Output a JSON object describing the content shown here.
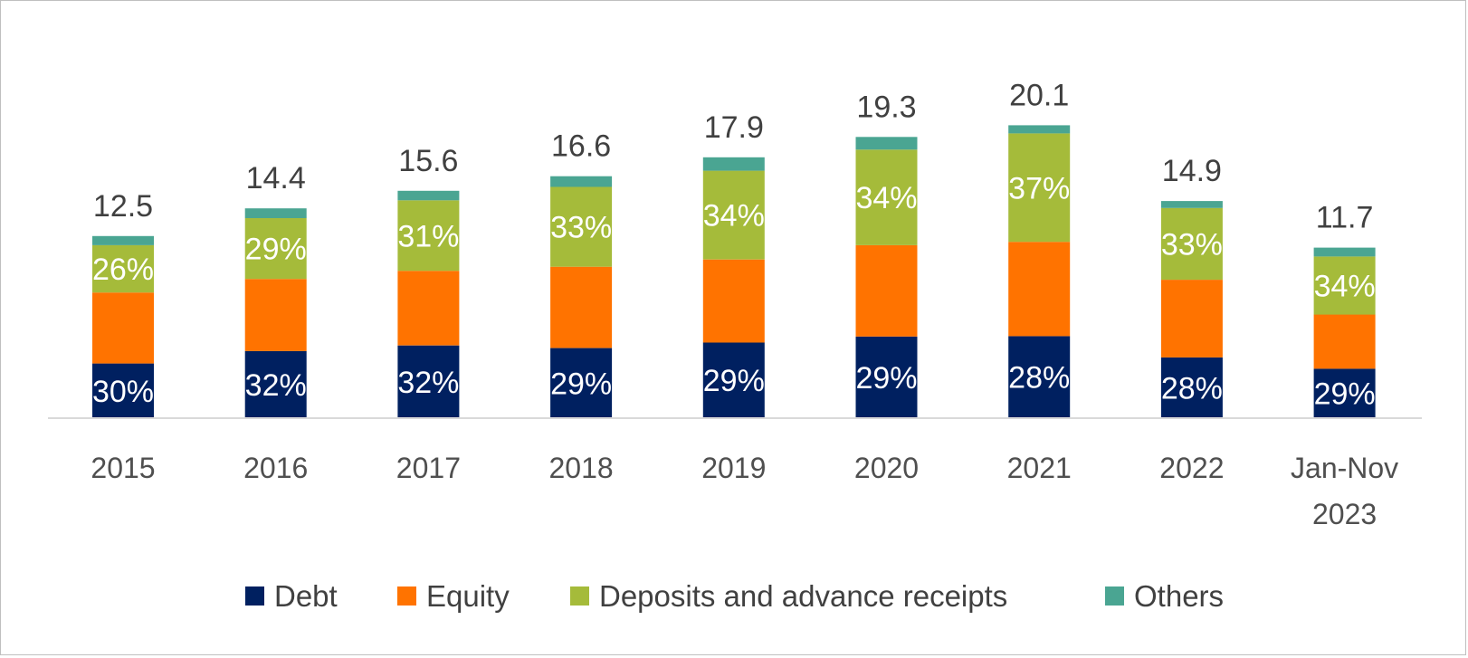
{
  "chart_data": {
    "type": "bar",
    "stacked": true,
    "categories": [
      "2015",
      "2016",
      "2017",
      "2018",
      "2019",
      "2020",
      "2021",
      "2022",
      "Jan-Nov 2023"
    ],
    "category_lines": [
      [
        "2015"
      ],
      [
        "2016"
      ],
      [
        "2017"
      ],
      [
        "2018"
      ],
      [
        "2019"
      ],
      [
        "2020"
      ],
      [
        "2021"
      ],
      [
        "2022"
      ],
      [
        "Jan-Nov",
        "2023"
      ]
    ],
    "totals": [
      12.5,
      14.4,
      15.6,
      16.6,
      17.9,
      19.3,
      20.1,
      14.9,
      11.7
    ],
    "total_labels": [
      "12.5",
      "14.4",
      "15.6",
      "16.6",
      "17.9",
      "19.3",
      "20.1",
      "14.9",
      "11.7"
    ],
    "series": [
      {
        "name": "Debt",
        "color": "#002060",
        "values": [
          3.75,
          4.6,
          4.99,
          4.81,
          5.19,
          5.6,
          5.63,
          4.17,
          3.39
        ],
        "labels": [
          "30%",
          "32%",
          "32%",
          "29%",
          "29%",
          "29%",
          "28%",
          "28%",
          "29%"
        ]
      },
      {
        "name": "Equity",
        "color": "#ff7300",
        "values": [
          4.87,
          4.95,
          5.12,
          5.58,
          5.7,
          6.27,
          6.47,
          5.33,
          3.72
        ],
        "labels": [
          "",
          "",
          "",
          "",
          "",
          "",
          "",
          "",
          ""
        ]
      },
      {
        "name": "Deposits and advance receipts",
        "color": "#a5bb3a",
        "values": [
          3.25,
          4.18,
          4.84,
          5.48,
          6.09,
          6.56,
          7.44,
          4.92,
          3.98
        ],
        "labels": [
          "26%",
          "29%",
          "31%",
          "33%",
          "34%",
          "34%",
          "37%",
          "33%",
          "34%"
        ]
      },
      {
        "name": "Others",
        "color": "#4aa592",
        "values": [
          0.63,
          0.67,
          0.65,
          0.73,
          0.92,
          0.87,
          0.56,
          0.48,
          0.61
        ],
        "labels": [
          "",
          "",
          "",
          "",
          "",
          "",
          "",
          "",
          ""
        ]
      }
    ],
    "ylim": [
      0,
      28
    ],
    "grid": false,
    "legend_position": "bottom"
  }
}
